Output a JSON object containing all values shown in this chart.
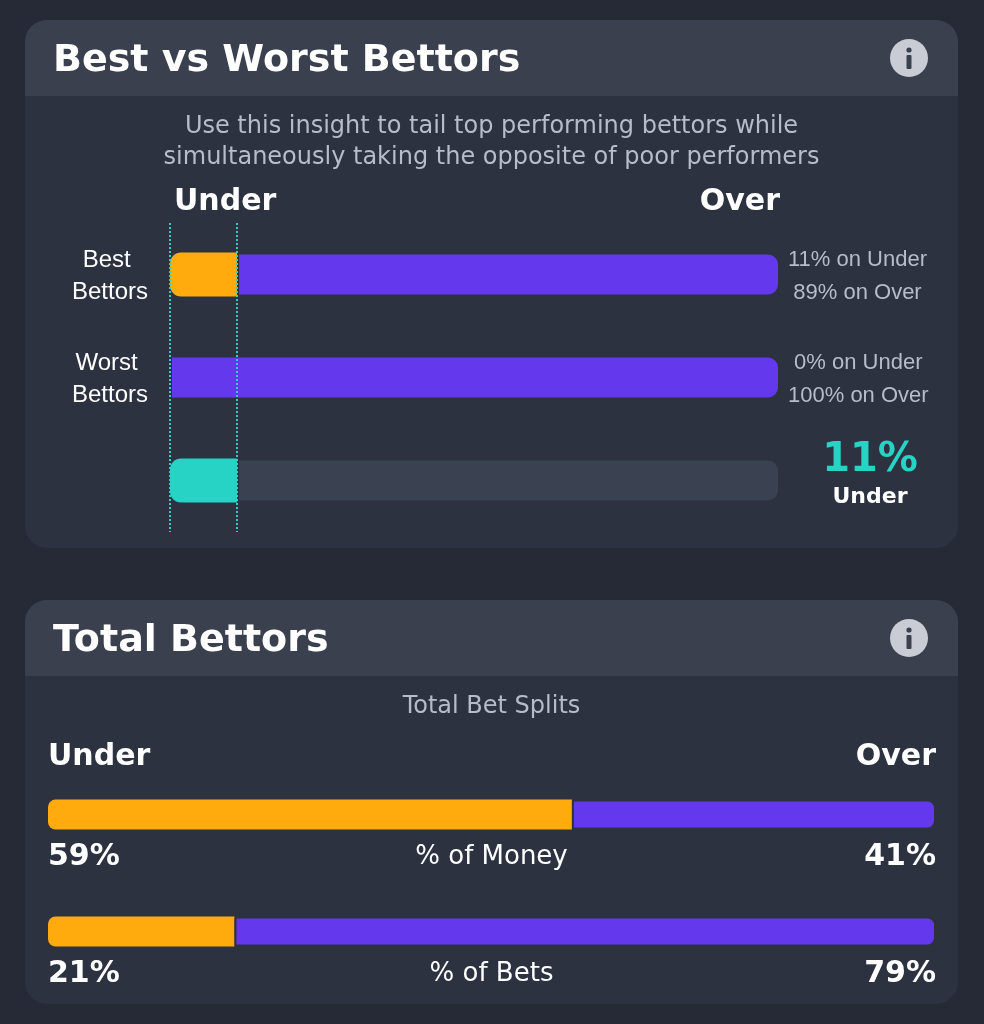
{
  "chart_data": [
    {
      "type": "bar",
      "title": "Best vs Worst Bettors",
      "subtitle": "Use this insight to tail top performing bettors while simultaneously taking the opposite of poor performers",
      "orientation": "horizontal",
      "stacked": true,
      "categories": [
        "Best Bettors",
        "Worst Bettors",
        null
      ],
      "series": [
        {
          "colors": [
            "#ffaa0d",
            "#ffaa0d",
            "#27d3c4"
          ],
          "values": [
            11,
            0,
            11
          ]
        },
        {
          "colors": [
            "#6439ee",
            "#6439ee",
            "#3a4150"
          ],
          "values": [
            89,
            100,
            89
          ],
          "value_labels": [
            "11% on Under\n89% on Over",
            "0% on Under\n100% on Over",
            null
          ]
        }
      ],
      "xlim": [
        0,
        100
      ],
      "annotations": [
        "Under",
        "Over",
        "11%",
        "Under"
      ],
      "ref_lines": [
        {
          "axis": "x",
          "value": 11,
          "color": "#27d3c4",
          "line_style": "dotted"
        },
        {
          "axis": "x",
          "value": 0,
          "color": "#27d3c4",
          "line_style": "dotted"
        }
      ],
      "tick_labels": "y"
    },
    {
      "type": "bar",
      "title": "Total Bettors",
      "subtitle": "Total Bet Splits",
      "orientation": "horizontal",
      "stacked": true,
      "categories": [
        "% of Money",
        "% of Bets"
      ],
      "series": [
        {
          "color": "#ffaa0d",
          "values": [
            59,
            21
          ],
          "value_labels": [
            "59%",
            "21%"
          ]
        },
        {
          "color": "#6439ee",
          "values": [
            41,
            79
          ],
          "value_labels": [
            "41%",
            "79%"
          ]
        }
      ],
      "xlim": [
        0,
        100
      ],
      "annotations": [
        "Under",
        "Over"
      ],
      "tick_labels": false
    }
  ]
}
